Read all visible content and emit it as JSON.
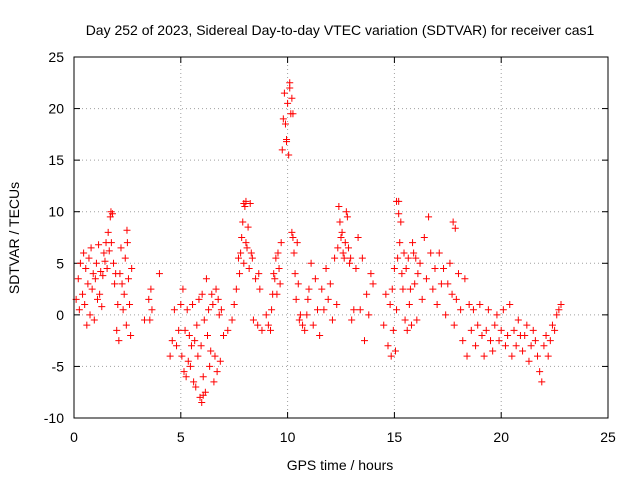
{
  "chart_data": {
    "type": "scatter",
    "title": "Day 252 of 2023, Sidereal Day-to-day VTEC variation (SDTVAR) for receiver cas1",
    "xlabel": "GPS time / hours",
    "ylabel": "SDTVAR / TECUs",
    "xlim": [
      0,
      25
    ],
    "ylim": [
      -10,
      25
    ],
    "xticks": [
      0,
      5,
      10,
      15,
      20,
      25
    ],
    "yticks": [
      -10,
      -5,
      0,
      5,
      10,
      15,
      20,
      25
    ],
    "grid": true,
    "marker": "+",
    "color": "#ff0000",
    "series": [
      {
        "name": "SDTVAR",
        "x": [
          0.1,
          0.2,
          0.25,
          0.3,
          0.4,
          0.45,
          0.5,
          0.55,
          0.6,
          0.65,
          0.7,
          0.75,
          0.8,
          0.85,
          0.9,
          0.95,
          1.0,
          1.05,
          1.1,
          1.15,
          1.2,
          1.25,
          1.3,
          1.35,
          1.4,
          1.45,
          1.5,
          1.55,
          1.6,
          1.65,
          1.7,
          1.75,
          1.8,
          1.85,
          1.9,
          1.95,
          2.0,
          2.05,
          2.1,
          2.15,
          2.2,
          2.25,
          2.3,
          2.35,
          2.4,
          2.45,
          2.5,
          2.55,
          2.6,
          2.65,
          2.7,
          3.3,
          3.5,
          3.55,
          3.6,
          3.65,
          4.0,
          4.5,
          4.6,
          4.7,
          4.8,
          4.9,
          5.0,
          5.05,
          5.1,
          5.15,
          5.2,
          5.25,
          5.3,
          5.35,
          5.4,
          5.45,
          5.5,
          5.55,
          5.6,
          5.65,
          5.7,
          5.75,
          5.8,
          5.85,
          5.9,
          5.95,
          6.0,
          6.05,
          6.1,
          6.15,
          6.2,
          6.25,
          6.3,
          6.35,
          6.4,
          6.45,
          6.5,
          6.55,
          6.6,
          6.65,
          6.7,
          6.75,
          6.8,
          6.85,
          6.9,
          7.0,
          7.2,
          7.4,
          7.5,
          7.6,
          7.7,
          7.75,
          7.8,
          7.85,
          7.9,
          7.95,
          8.0,
          8.05,
          8.1,
          8.15,
          8.2,
          8.25,
          8.3,
          8.35,
          8.4,
          8.5,
          8.6,
          8.65,
          8.7,
          8.8,
          9.0,
          9.1,
          9.2,
          9.25,
          9.3,
          9.35,
          9.4,
          9.45,
          9.5,
          9.55,
          9.6,
          9.65,
          9.7,
          9.75,
          9.8,
          9.85,
          9.9,
          9.95,
          10.0,
          10.05,
          10.1,
          10.15,
          10.2,
          10.25,
          10.3,
          10.35,
          10.4,
          10.45,
          10.5,
          10.55,
          10.6,
          10.7,
          10.8,
          10.9,
          10.95,
          11.0,
          11.1,
          11.2,
          11.3,
          11.4,
          11.5,
          11.6,
          11.7,
          11.8,
          11.9,
          12.0,
          12.1,
          12.2,
          12.3,
          12.35,
          12.4,
          12.45,
          12.5,
          12.55,
          12.6,
          12.65,
          12.7,
          12.75,
          12.8,
          12.85,
          12.9,
          12.95,
          13.0,
          13.1,
          13.2,
          13.3,
          13.4,
          13.5,
          13.6,
          13.7,
          13.8,
          13.9,
          14.0,
          14.5,
          14.6,
          14.7,
          14.8,
          14.85,
          14.9,
          14.95,
          15.0,
          15.05,
          15.1,
          15.15,
          15.2,
          15.25,
          15.3,
          15.35,
          15.4,
          15.45,
          15.5,
          15.55,
          15.6,
          15.65,
          15.7,
          15.75,
          15.8,
          15.85,
          15.9,
          15.95,
          16.0,
          16.05,
          16.1,
          16.2,
          16.3,
          16.4,
          16.5,
          16.6,
          16.7,
          16.8,
          16.9,
          17.0,
          17.1,
          17.2,
          17.3,
          17.4,
          17.5,
          17.6,
          17.7,
          17.8,
          17.9,
          18.0,
          18.1,
          18.2,
          18.3,
          18.4,
          18.5,
          18.6,
          18.7,
          18.8,
          18.9,
          19.0,
          19.1,
          19.2,
          19.3,
          19.4,
          19.5,
          19.6,
          19.7,
          19.8,
          19.9,
          20.0,
          20.1,
          20.2,
          20.3,
          20.4,
          20.5,
          20.6,
          20.7,
          20.8,
          20.9,
          21.0,
          21.1,
          21.2,
          21.3,
          21.4,
          21.5,
          21.6,
          21.7,
          21.8,
          21.9,
          22.0,
          22.1,
          22.2,
          22.3,
          22.4,
          22.5,
          22.6,
          22.7,
          22.8,
          1.73,
          2.48,
          5.98,
          6.05,
          7.95,
          8.05,
          9.95,
          10.1,
          10.2,
          10.25,
          15.1,
          15.2,
          17.75,
          17.85
        ],
        "y": [
          1.5,
          3.5,
          0.5,
          5.0,
          2.0,
          6.0,
          1.0,
          4.5,
          -1.0,
          3.0,
          5.5,
          0.0,
          6.5,
          2.5,
          4.0,
          -0.5,
          3.5,
          5.0,
          1.5,
          6.8,
          2.0,
          4.2,
          0.8,
          3.8,
          6.0,
          5.2,
          7.0,
          4.5,
          8.0,
          6.2,
          9.5,
          7.0,
          9.8,
          5.0,
          3.0,
          4.0,
          -1.5,
          1.0,
          -2.5,
          4.0,
          6.5,
          3.0,
          0.5,
          2.0,
          5.5,
          -1.0,
          7.0,
          3.5,
          1.0,
          -2.0,
          4.5,
          -0.5,
          1.5,
          -0.5,
          2.5,
          0.5,
          4.0,
          -4.0,
          -2.5,
          0.5,
          -3.0,
          -1.5,
          1.0,
          -4.0,
          2.5,
          -5.5,
          -1.5,
          -6.0,
          0.5,
          -4.5,
          -2.0,
          -5.0,
          -3.0,
          1.0,
          -6.5,
          -2.5,
          -7.0,
          -1.0,
          -4.0,
          1.5,
          -8.0,
          -3.0,
          2.0,
          -6.0,
          -0.5,
          -7.5,
          3.5,
          -2.0,
          0.5,
          -5.0,
          -3.5,
          2.0,
          1.0,
          -6.5,
          -4.0,
          2.5,
          -5.5,
          1.5,
          0.0,
          -4.5,
          0.5,
          -2.0,
          -1.5,
          -0.5,
          1.0,
          2.5,
          5.5,
          4.0,
          6.0,
          7.5,
          9.0,
          5.0,
          10.5,
          7.0,
          6.5,
          8.5,
          4.5,
          10.8,
          6.0,
          5.5,
          -0.5,
          3.5,
          -1.0,
          4.0,
          2.5,
          -1.5,
          0.0,
          -1.0,
          -1.5,
          0.5,
          2.0,
          4.0,
          3.5,
          5.5,
          2.0,
          6.0,
          4.5,
          3.0,
          7.0,
          16.0,
          19.0,
          21.5,
          18.5,
          17.0,
          20.5,
          15.5,
          22.0,
          19.5,
          8.0,
          7.5,
          6.0,
          4.0,
          1.5,
          7.0,
          3.0,
          -0.5,
          0.0,
          -1.0,
          -1.5,
          0.0,
          1.5,
          2.5,
          5.0,
          -1.0,
          3.5,
          0.5,
          -2.0,
          2.5,
          0.5,
          4.5,
          1.5,
          3.0,
          -0.5,
          5.5,
          1.0,
          6.5,
          10.5,
          9.0,
          7.5,
          8.0,
          6.0,
          5.5,
          7.0,
          10.0,
          9.5,
          6.5,
          5.0,
          5.5,
          -0.5,
          0.5,
          4.5,
          7.5,
          0.5,
          5.5,
          -2.5,
          2.0,
          0.0,
          4.0,
          3.0,
          -1.0,
          2.0,
          -3.0,
          1.0,
          -4.0,
          2.5,
          -1.5,
          4.5,
          -3.5,
          0.5,
          5.5,
          11.0,
          7.0,
          9.0,
          4.0,
          2.5,
          6.0,
          -0.5,
          4.5,
          -1.5,
          5.5,
          1.0,
          2.5,
          -1.0,
          7.0,
          6.0,
          3.0,
          5.5,
          -0.5,
          4.0,
          5.0,
          1.5,
          7.5,
          3.5,
          9.5,
          6.0,
          2.5,
          4.5,
          1.0,
          6.0,
          3.0,
          4.5,
          0.0,
          3.0,
          5.0,
          2.0,
          -1.0,
          1.5,
          4.0,
          0.5,
          -2.5,
          3.5,
          -4.0,
          1.0,
          -1.5,
          0.5,
          -3.0,
          -1.0,
          1.0,
          -2.0,
          -4.0,
          -1.5,
          0.5,
          -2.5,
          -3.5,
          -1.0,
          0.0,
          -2.5,
          -1.5,
          0.5,
          -3.0,
          -2.0,
          1.0,
          -4.0,
          -1.5,
          -3.0,
          -0.5,
          -2.0,
          -3.5,
          -2.0,
          -1.0,
          -4.5,
          -3.0,
          -1.5,
          -2.5,
          -4.0,
          -5.5,
          -6.5,
          -3.0,
          -2.0,
          -4.0,
          -2.5,
          -1.0,
          -1.5,
          0.0,
          0.5,
          1.0,
          10.0,
          8.2,
          -8.5,
          -7.8,
          10.8,
          11.0,
          16.8,
          22.5,
          21.0,
          19.5,
          11.0,
          9.8,
          9.0,
          8.4
        ]
      }
    ]
  }
}
